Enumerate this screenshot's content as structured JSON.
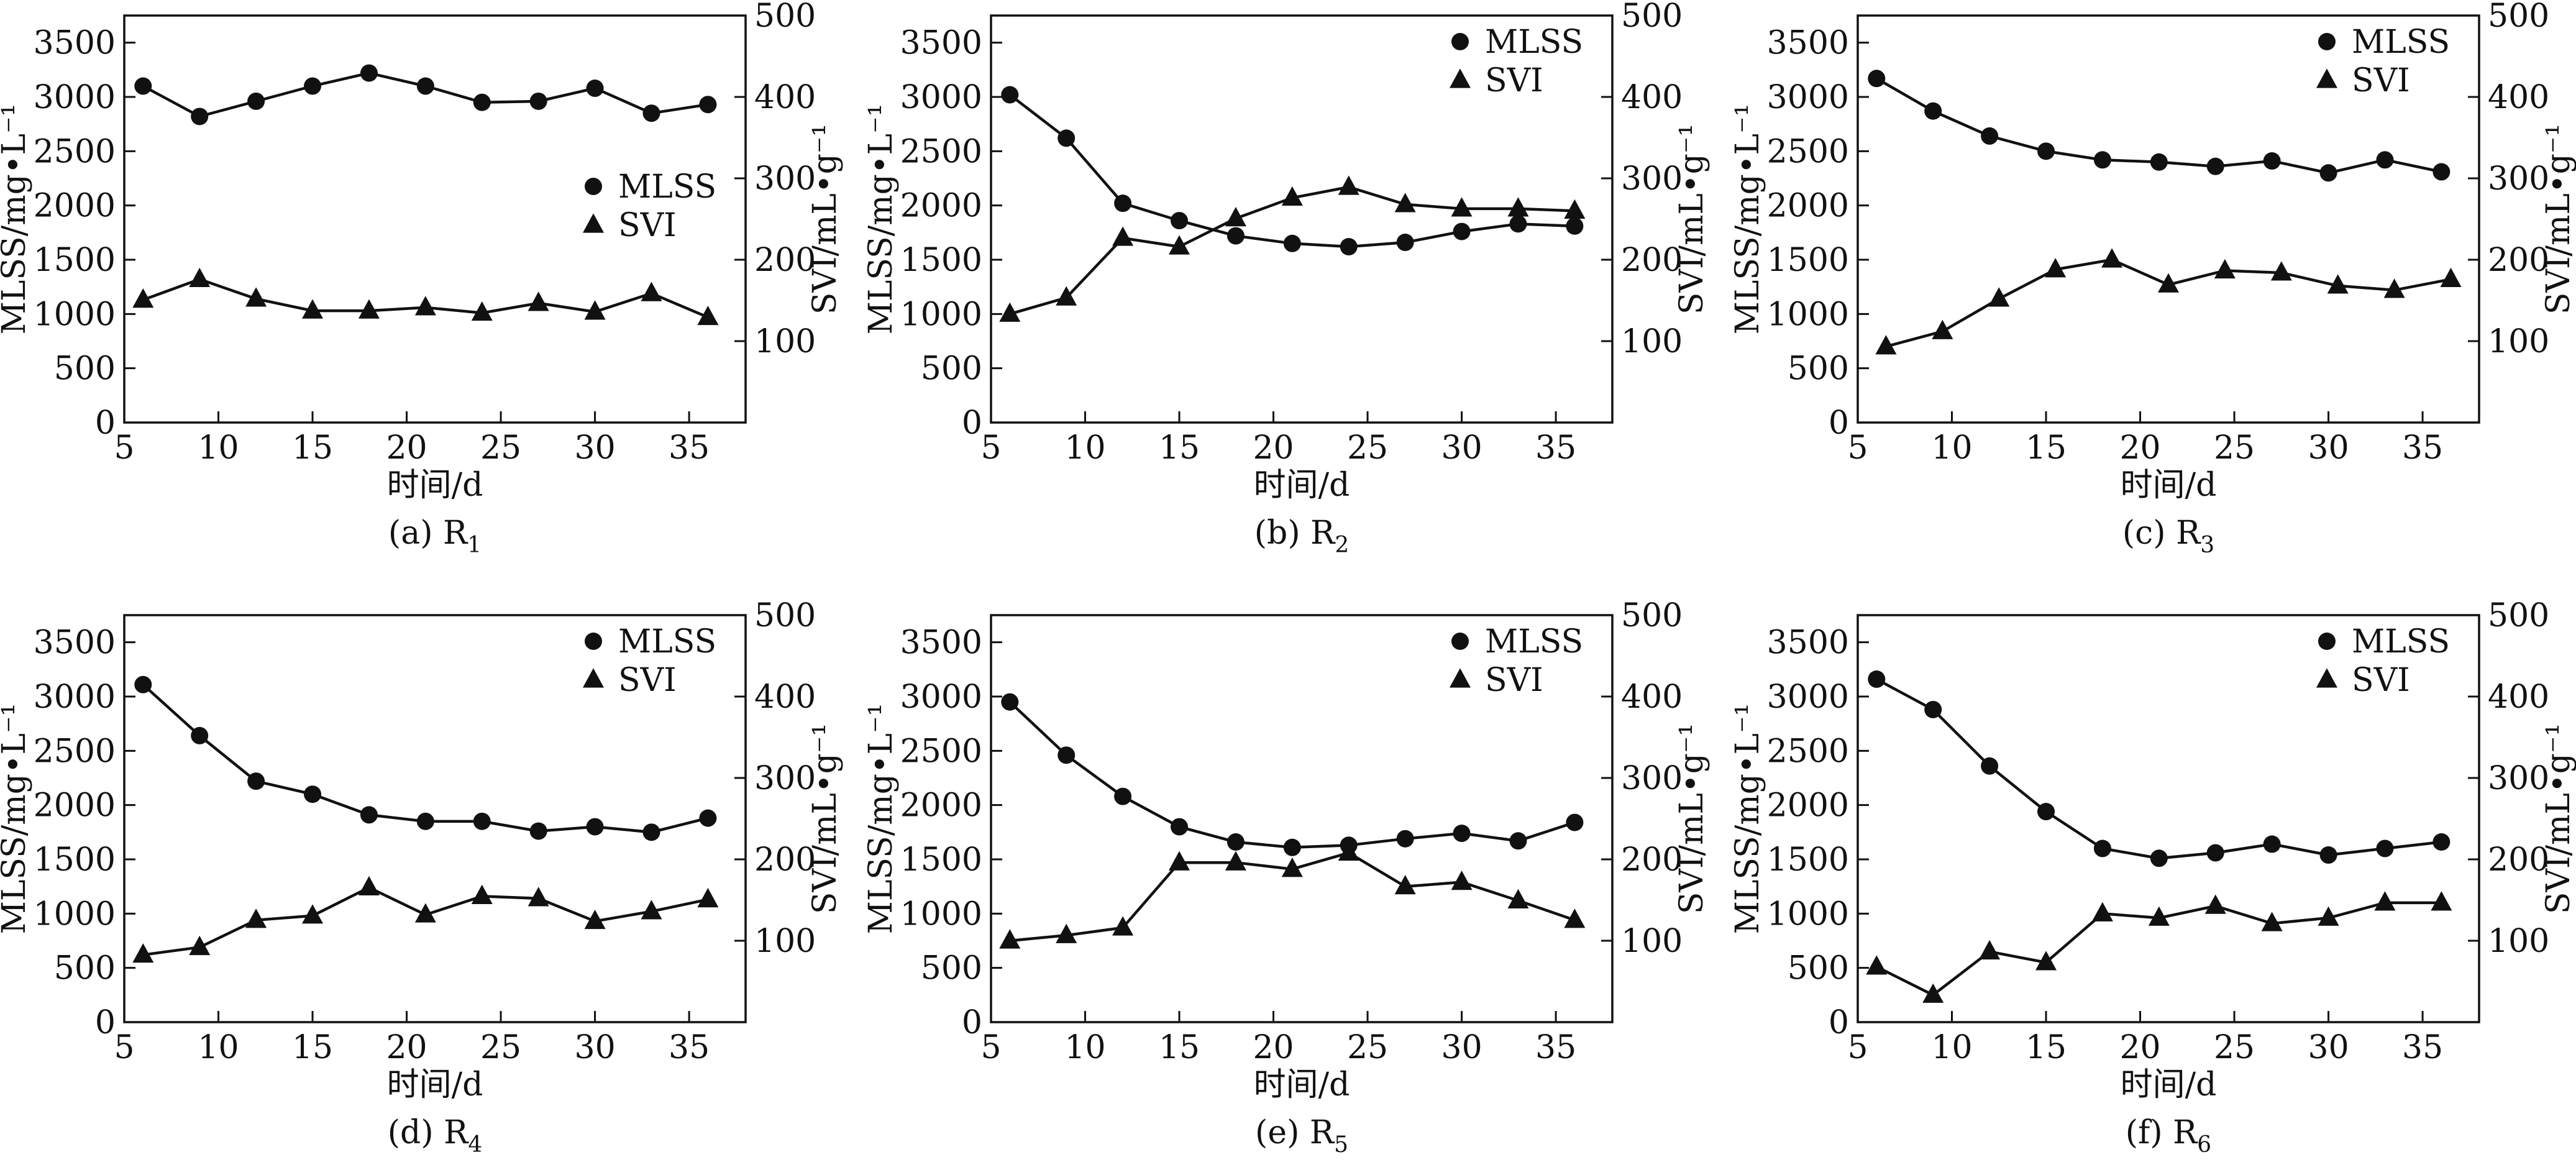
{
  "chart_data": [
    {
      "type": "line",
      "caption": "(a) R",
      "caption_sub": "1",
      "xlabel": "时间/d",
      "ylabel_left": "MLSS/mg•L⁻¹",
      "ylabel_right": "SVI/mL•g⁻¹",
      "xlim": [
        5,
        38
      ],
      "xticks": [
        5,
        10,
        15,
        20,
        25,
        30,
        35
      ],
      "ylim_left": [
        0,
        3750
      ],
      "yticks_left": [
        0,
        500,
        1000,
        1500,
        2000,
        2500,
        3000,
        3500
      ],
      "ylim_right": [
        0,
        500
      ],
      "yticks_right": [
        100,
        200,
        300,
        400,
        500
      ],
      "legend": "middle-right",
      "series": [
        {
          "name": "MLSS",
          "marker": "circle",
          "axis": "left",
          "x": [
            6,
            9,
            12,
            15,
            18,
            21,
            24,
            27,
            30,
            33,
            36
          ],
          "y": [
            3100,
            2820,
            2960,
            3100,
            3220,
            3100,
            2950,
            2960,
            3080,
            2850,
            2930
          ]
        },
        {
          "name": "SVI",
          "marker": "triangle",
          "axis": "left",
          "x": [
            6,
            9,
            12,
            15,
            18,
            21,
            24,
            27,
            30,
            33,
            36
          ],
          "y": [
            1130,
            1320,
            1140,
            1030,
            1030,
            1060,
            1010,
            1100,
            1020,
            1190,
            970
          ]
        }
      ]
    },
    {
      "type": "line",
      "caption": "(b) R",
      "caption_sub": "2",
      "xlabel": "时间/d",
      "ylabel_left": "MLSS/mg•L⁻¹",
      "ylabel_right": "SVI/mL•g⁻¹",
      "xlim": [
        5,
        38
      ],
      "xticks": [
        5,
        10,
        15,
        20,
        25,
        30,
        35
      ],
      "ylim_left": [
        0,
        3750
      ],
      "yticks_left": [
        0,
        500,
        1000,
        1500,
        2000,
        2500,
        3000,
        3500
      ],
      "ylim_right": [
        0,
        500
      ],
      "yticks_right": [
        100,
        200,
        300,
        400,
        500
      ],
      "legend": "top-right",
      "series": [
        {
          "name": "MLSS",
          "marker": "circle",
          "axis": "left",
          "x": [
            6,
            9,
            12,
            15,
            18,
            21,
            24,
            27,
            30,
            33,
            36
          ],
          "y": [
            3020,
            2620,
            2020,
            1860,
            1720,
            1650,
            1620,
            1660,
            1760,
            1830,
            1810
          ]
        },
        {
          "name": "SVI",
          "marker": "triangle",
          "axis": "left",
          "x": [
            6,
            9,
            12,
            15,
            18,
            21,
            24,
            27,
            30,
            33,
            36
          ],
          "y": [
            1000,
            1150,
            1700,
            1620,
            1880,
            2070,
            2170,
            2010,
            1970,
            1970,
            1950
          ]
        }
      ]
    },
    {
      "type": "line",
      "caption": "(c) R",
      "caption_sub": "3",
      "xlabel": "时间/d",
      "ylabel_left": "MLSS/mg•L⁻¹",
      "ylabel_right": "SVI/mL•g⁻¹",
      "xlim": [
        5,
        38
      ],
      "xticks": [
        5,
        10,
        15,
        20,
        25,
        30,
        35
      ],
      "ylim_left": [
        0,
        3750
      ],
      "yticks_left": [
        0,
        500,
        1000,
        1500,
        2000,
        2500,
        3000,
        3500
      ],
      "ylim_right": [
        0,
        500
      ],
      "yticks_right": [
        100,
        200,
        300,
        400,
        500
      ],
      "legend": "top-right",
      "series": [
        {
          "name": "MLSS",
          "marker": "circle",
          "axis": "left",
          "x": [
            6,
            9,
            12,
            15,
            18,
            21,
            24,
            27,
            30,
            33,
            36
          ],
          "y": [
            3170,
            2870,
            2640,
            2500,
            2420,
            2400,
            2360,
            2410,
            2300,
            2420,
            2310
          ]
        },
        {
          "name": "SVI",
          "marker": "triangle",
          "axis": "left",
          "x": [
            6.5,
            9.5,
            12.5,
            15.5,
            18.5,
            21.5,
            24.5,
            27.5,
            30.5,
            33.5,
            36.5
          ],
          "y": [
            700,
            840,
            1140,
            1410,
            1500,
            1270,
            1400,
            1380,
            1260,
            1220,
            1320
          ]
        }
      ]
    },
    {
      "type": "line",
      "caption": "(d) R",
      "caption_sub": "4",
      "xlabel": "时间/d",
      "ylabel_left": "MLSS/mg•L⁻¹",
      "ylabel_right": "SVI/mL•g⁻¹",
      "xlim": [
        5,
        38
      ],
      "xticks": [
        5,
        10,
        15,
        20,
        25,
        30,
        35
      ],
      "ylim_left": [
        0,
        3750
      ],
      "yticks_left": [
        0,
        500,
        1000,
        1500,
        2000,
        2500,
        3000,
        3500
      ],
      "ylim_right": [
        0,
        500
      ],
      "yticks_right": [
        100,
        200,
        300,
        400,
        500
      ],
      "legend": "top-right",
      "series": [
        {
          "name": "MLSS",
          "marker": "circle",
          "axis": "left",
          "x": [
            6,
            9,
            12,
            15,
            18,
            21,
            24,
            27,
            30,
            33,
            36
          ],
          "y": [
            3110,
            2640,
            2220,
            2100,
            1910,
            1850,
            1850,
            1760,
            1800,
            1750,
            1880
          ]
        },
        {
          "name": "SVI",
          "marker": "triangle",
          "axis": "left",
          "x": [
            6,
            9,
            12,
            15,
            18,
            21,
            24,
            27,
            30,
            33,
            36
          ],
          "y": [
            620,
            690,
            940,
            980,
            1240,
            990,
            1160,
            1140,
            930,
            1020,
            1130
          ]
        }
      ]
    },
    {
      "type": "line",
      "caption": "(e) R",
      "caption_sub": "5",
      "xlabel": "时间/d",
      "ylabel_left": "MLSS/mg•L⁻¹",
      "ylabel_right": "SVI/mL•g⁻¹",
      "xlim": [
        5,
        38
      ],
      "xticks": [
        5,
        10,
        15,
        20,
        25,
        30,
        35
      ],
      "ylim_left": [
        0,
        3750
      ],
      "yticks_left": [
        0,
        500,
        1000,
        1500,
        2000,
        2500,
        3000,
        3500
      ],
      "ylim_right": [
        0,
        500
      ],
      "yticks_right": [
        100,
        200,
        300,
        400,
        500
      ],
      "legend": "top-right",
      "series": [
        {
          "name": "MLSS",
          "marker": "circle",
          "axis": "left",
          "x": [
            6,
            9,
            12,
            15,
            18,
            21,
            24,
            27,
            30,
            33,
            36
          ],
          "y": [
            2950,
            2460,
            2080,
            1800,
            1660,
            1610,
            1630,
            1690,
            1740,
            1670,
            1840
          ]
        },
        {
          "name": "SVI",
          "marker": "triangle",
          "axis": "left",
          "x": [
            6,
            9,
            12,
            15,
            18,
            21,
            24,
            27,
            30,
            33,
            36
          ],
          "y": [
            750,
            800,
            870,
            1470,
            1470,
            1410,
            1560,
            1250,
            1290,
            1120,
            940
          ]
        }
      ]
    },
    {
      "type": "line",
      "caption": "(f) R",
      "caption_sub": "6",
      "xlabel": "时间/d",
      "ylabel_left": "MLSS/mg•L⁻¹",
      "ylabel_right": "SVI/mL•g⁻¹",
      "xlim": [
        5,
        38
      ],
      "xticks": [
        5,
        10,
        15,
        20,
        25,
        30,
        35
      ],
      "ylim_left": [
        0,
        3750
      ],
      "yticks_left": [
        0,
        500,
        1000,
        1500,
        2000,
        2500,
        3000,
        3500
      ],
      "ylim_right": [
        0,
        500
      ],
      "yticks_right": [
        100,
        200,
        300,
        400,
        500
      ],
      "legend": "top-right",
      "series": [
        {
          "name": "MLSS",
          "marker": "circle",
          "axis": "left",
          "x": [
            6,
            9,
            12,
            15,
            18,
            21,
            24,
            27,
            30,
            33,
            36
          ],
          "y": [
            3160,
            2880,
            2360,
            1940,
            1600,
            1510,
            1560,
            1640,
            1540,
            1600,
            1660
          ]
        },
        {
          "name": "SVI",
          "marker": "triangle",
          "axis": "left",
          "x": [
            6,
            9,
            12,
            15,
            18,
            21,
            24,
            27,
            30,
            33,
            36
          ],
          "y": [
            510,
            250,
            650,
            550,
            1000,
            960,
            1070,
            910,
            960,
            1100,
            1100
          ]
        }
      ]
    }
  ]
}
